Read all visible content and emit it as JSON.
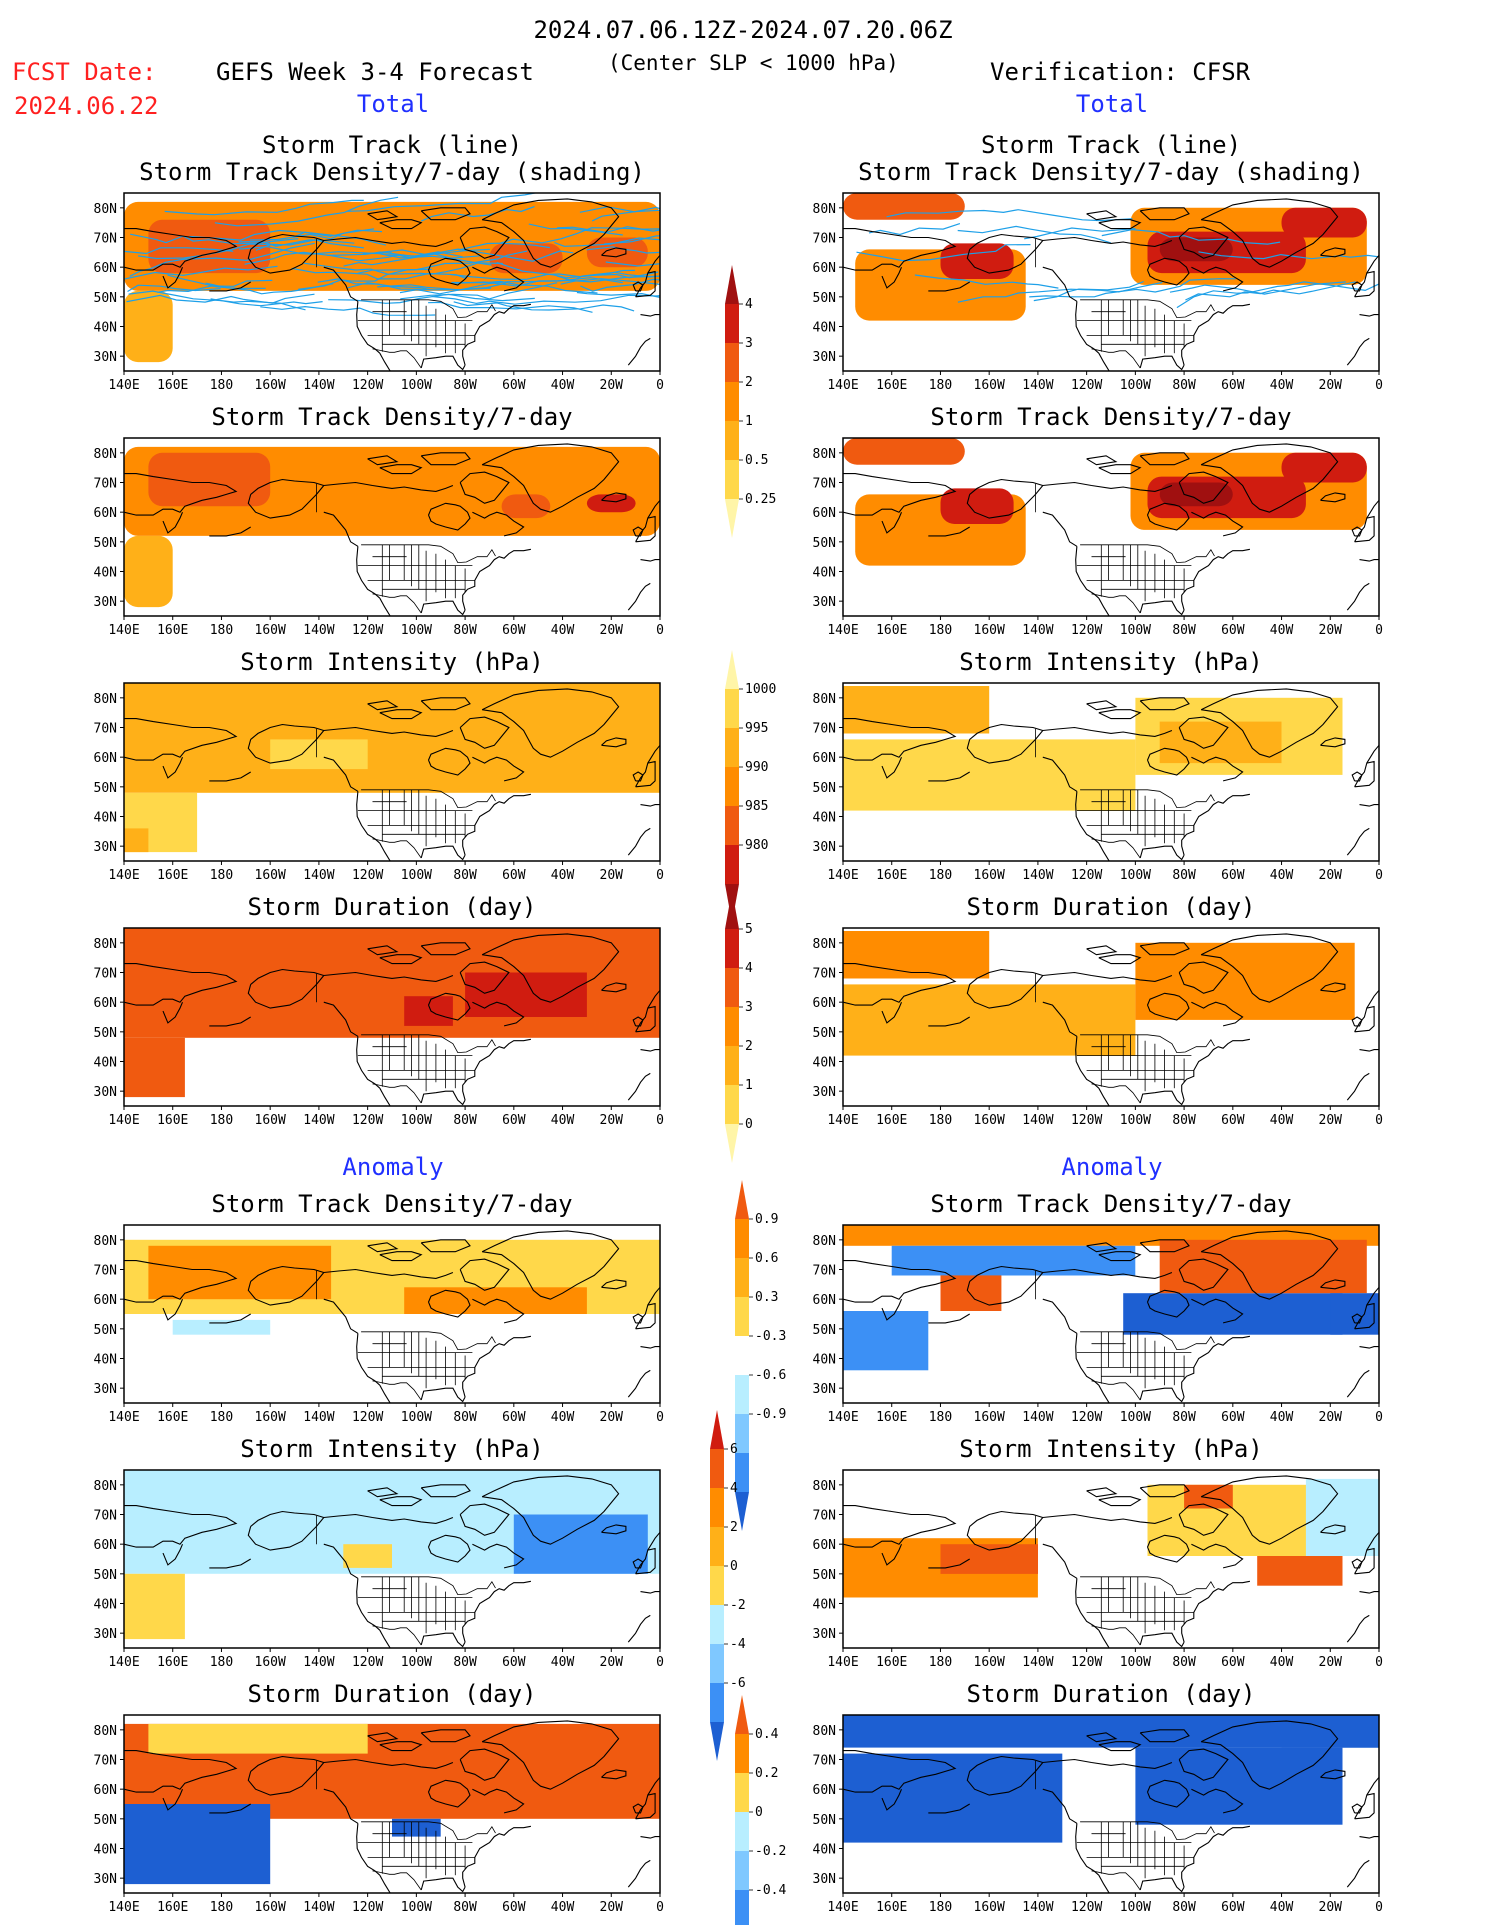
{
  "header": {
    "period": "2024.07.06.12Z-2024.07.20.06Z",
    "fcst_label": "FCST Date:",
    "fcst_date": "2024.06.22",
    "left_title": "GEFS Week 3-4 Forecast",
    "subtitle": "(Center SLP < 1000 hPa)",
    "right_title": "Verification: CFSR"
  },
  "section_labels": {
    "total": "Total",
    "anomaly": "Anomaly"
  },
  "panel_titles": {
    "track_line": "Storm Track (line)",
    "track_density_shading": "Storm Track Density/7-day (shading)",
    "track_density": "Storm Track Density/7-day",
    "intensity": "Storm Intensity (hPa)",
    "duration": "Storm Duration (day)"
  },
  "axes": {
    "lon_ticks": [
      "140E",
      "160E",
      "180",
      "160W",
      "140W",
      "120W",
      "100W",
      "80W",
      "60W",
      "40W",
      "20W",
      "0"
    ],
    "lat_ticks": [
      "80N",
      "70N",
      "60N",
      "50N",
      "40N",
      "30N"
    ]
  },
  "colors": {
    "pale_yellow": "#fff5a8",
    "yellow": "#ffd84a",
    "light_orange": "#ffb018",
    "orange": "#ff8c00",
    "orange_red": "#f05a10",
    "red": "#d01c10",
    "dark_red": "#a01010",
    "pale_blue": "#b8eeff",
    "light_blue": "#7fc8ff",
    "blue": "#3c90f5",
    "dark_blue": "#1d5fd2",
    "track_line": "#1ea0e8"
  },
  "chart_data": [
    {
      "type": "heatmap",
      "panel": "forecast-total-track-lines",
      "title": "Storm Track (line)",
      "subtitle": "Storm Track Density/7-day (shading)",
      "xlim": [
        140,
        360
      ],
      "ylim": [
        25,
        85
      ],
      "colorbar": "density",
      "fields": [
        {
          "lon": [
            140,
            360
          ],
          "lat": [
            52,
            82
          ],
          "level": 3
        },
        {
          "lon": [
            150,
            200
          ],
          "lat": [
            58,
            76
          ],
          "level": 4
        },
        {
          "lon": [
            290,
            320
          ],
          "lat": [
            58,
            68
          ],
          "level": 4
        },
        {
          "lon": [
            330,
            355
          ],
          "lat": [
            60,
            70
          ],
          "level": 4
        },
        {
          "lon": [
            140,
            160
          ],
          "lat": [
            28,
            52
          ],
          "level": 2
        }
      ]
    },
    {
      "type": "heatmap",
      "panel": "verification-total-track-lines",
      "title": "Storm Track (line)",
      "subtitle": "Storm Track Density/7-day (shading)",
      "xlim": [
        140,
        360
      ],
      "ylim": [
        25,
        85
      ],
      "colorbar": "density",
      "fields": [
        {
          "lon": [
            145,
            215
          ],
          "lat": [
            42,
            66
          ],
          "level": 3
        },
        {
          "lon": [
            140,
            190
          ],
          "lat": [
            76,
            85
          ],
          "level": 4
        },
        {
          "lon": [
            180,
            210
          ],
          "lat": [
            56,
            68
          ],
          "level": 5
        },
        {
          "lon": [
            258,
            355
          ],
          "lat": [
            54,
            80
          ],
          "level": 3
        },
        {
          "lon": [
            265,
            330
          ],
          "lat": [
            58,
            72
          ],
          "level": 5
        },
        {
          "lon": [
            270,
            300
          ],
          "lat": [
            62,
            70
          ],
          "level": 6
        },
        {
          "lon": [
            320,
            355
          ],
          "lat": [
            70,
            80
          ],
          "level": 5
        }
      ]
    },
    {
      "type": "heatmap",
      "panel": "forecast-total-density",
      "title": "Storm Track Density/7-day",
      "xlim": [
        140,
        360
      ],
      "ylim": [
        25,
        85
      ],
      "colorbar": "density",
      "fields": [
        {
          "lon": [
            140,
            360
          ],
          "lat": [
            52,
            82
          ],
          "level": 3
        },
        {
          "lon": [
            150,
            200
          ],
          "lat": [
            62,
            80
          ],
          "level": 4
        },
        {
          "lon": [
            295,
            315
          ],
          "lat": [
            58,
            66
          ],
          "level": 4
        },
        {
          "lon": [
            330,
            350
          ],
          "lat": [
            60,
            66
          ],
          "level": 5
        },
        {
          "lon": [
            140,
            160
          ],
          "lat": [
            28,
            52
          ],
          "level": 2
        }
      ]
    },
    {
      "type": "heatmap",
      "panel": "verification-total-density",
      "title": "Storm Track Density/7-day",
      "xlim": [
        140,
        360
      ],
      "ylim": [
        25,
        85
      ],
      "colorbar": "density",
      "fields": [
        {
          "lon": [
            145,
            215
          ],
          "lat": [
            42,
            66
          ],
          "level": 3
        },
        {
          "lon": [
            140,
            190
          ],
          "lat": [
            76,
            85
          ],
          "level": 4
        },
        {
          "lon": [
            180,
            210
          ],
          "lat": [
            56,
            68
          ],
          "level": 5
        },
        {
          "lon": [
            258,
            355
          ],
          "lat": [
            54,
            80
          ],
          "level": 3
        },
        {
          "lon": [
            265,
            330
          ],
          "lat": [
            58,
            72
          ],
          "level": 5
        },
        {
          "lon": [
            270,
            300
          ],
          "lat": [
            62,
            70
          ],
          "level": 6
        },
        {
          "lon": [
            320,
            355
          ],
          "lat": [
            70,
            80
          ],
          "level": 5
        }
      ]
    },
    {
      "type": "heatmap",
      "panel": "forecast-total-intensity",
      "title": "Storm Intensity (hPa)",
      "xlim": [
        140,
        360
      ],
      "ylim": [
        25,
        85
      ],
      "colorbar": "intensity",
      "fields": [
        {
          "lon": [
            140,
            360
          ],
          "lat": [
            48,
            85
          ],
          "level": 2
        },
        {
          "lon": [
            140,
            170
          ],
          "lat": [
            28,
            48
          ],
          "level": 1
        },
        {
          "lon": [
            200,
            240
          ],
          "lat": [
            56,
            66
          ],
          "level": 1
        },
        {
          "lon": [
            140,
            150
          ],
          "lat": [
            28,
            36
          ],
          "level": 2
        }
      ]
    },
    {
      "type": "heatmap",
      "panel": "verification-total-intensity",
      "title": "Storm Intensity (hPa)",
      "xlim": [
        140,
        360
      ],
      "ylim": [
        25,
        85
      ],
      "colorbar": "intensity",
      "fields": [
        {
          "lon": [
            140,
            260
          ],
          "lat": [
            42,
            66
          ],
          "level": 1
        },
        {
          "lon": [
            140,
            200
          ],
          "lat": [
            68,
            84
          ],
          "level": 2
        },
        {
          "lon": [
            260,
            345
          ],
          "lat": [
            54,
            80
          ],
          "level": 1
        },
        {
          "lon": [
            270,
            320
          ],
          "lat": [
            58,
            72
          ],
          "level": 2
        }
      ]
    },
    {
      "type": "heatmap",
      "panel": "forecast-total-duration",
      "title": "Storm Duration (day)",
      "xlim": [
        140,
        360
      ],
      "ylim": [
        25,
        85
      ],
      "colorbar": "duration",
      "fields": [
        {
          "lon": [
            140,
            360
          ],
          "lat": [
            48,
            85
          ],
          "level": 4
        },
        {
          "lon": [
            140,
            165
          ],
          "lat": [
            28,
            48
          ],
          "level": 4
        },
        {
          "lon": [
            280,
            330
          ],
          "lat": [
            55,
            70
          ],
          "level": 5
        },
        {
          "lon": [
            255,
            275
          ],
          "lat": [
            52,
            62
          ],
          "level": 5
        }
      ]
    },
    {
      "type": "heatmap",
      "panel": "verification-total-duration",
      "title": "Storm Duration (day)",
      "xlim": [
        140,
        360
      ],
      "ylim": [
        25,
        85
      ],
      "colorbar": "duration",
      "fields": [
        {
          "lon": [
            140,
            260
          ],
          "lat": [
            42,
            66
          ],
          "level": 2
        },
        {
          "lon": [
            140,
            200
          ],
          "lat": [
            68,
            84
          ],
          "level": 3
        },
        {
          "lon": [
            260,
            350
          ],
          "lat": [
            54,
            80
          ],
          "level": 3
        }
      ]
    },
    {
      "type": "heatmap",
      "panel": "forecast-anomaly-density",
      "title": "Storm Track Density/7-day",
      "xlim": [
        140,
        360
      ],
      "ylim": [
        25,
        85
      ],
      "colorbar": "density-anomaly",
      "fields": [
        {
          "lon": [
            140,
            360
          ],
          "lat": [
            55,
            80
          ],
          "level": 1
        },
        {
          "lon": [
            150,
            225
          ],
          "lat": [
            60,
            78
          ],
          "level": 2
        },
        {
          "lon": [
            255,
            330
          ],
          "lat": [
            55,
            64
          ],
          "level": 2
        },
        {
          "lon": [
            160,
            200
          ],
          "lat": [
            48,
            53
          ],
          "level": -1
        }
      ]
    },
    {
      "type": "heatmap",
      "panel": "verification-anomaly-density",
      "title": "Storm Track Density/7-day",
      "xlim": [
        140,
        360
      ],
      "ylim": [
        25,
        85
      ],
      "colorbar": "density-anomaly",
      "fields": [
        {
          "lon": [
            140,
            360
          ],
          "lat": [
            78,
            85
          ],
          "level": 2
        },
        {
          "lon": [
            160,
            260
          ],
          "lat": [
            68,
            78
          ],
          "level": -2
        },
        {
          "lon": [
            180,
            205
          ],
          "lat": [
            56,
            68
          ],
          "level": 3
        },
        {
          "lon": [
            140,
            175
          ],
          "lat": [
            36,
            56
          ],
          "level": -2
        },
        {
          "lon": [
            255,
            345
          ],
          "lat": [
            48,
            62
          ],
          "level": -3
        },
        {
          "lon": [
            270,
            355
          ],
          "lat": [
            62,
            80
          ],
          "level": 3
        },
        {
          "lon": [
            340,
            360
          ],
          "lat": [
            48,
            62
          ],
          "level": -3
        }
      ]
    },
    {
      "type": "heatmap",
      "panel": "forecast-anomaly-intensity",
      "title": "Storm Intensity (hPa)",
      "xlim": [
        140,
        360
      ],
      "ylim": [
        25,
        85
      ],
      "colorbar": "intensity-anomaly",
      "fields": [
        {
          "lon": [
            140,
            360
          ],
          "lat": [
            50,
            85
          ],
          "level": -1
        },
        {
          "lon": [
            140,
            165
          ],
          "lat": [
            28,
            50
          ],
          "level": 1
        },
        {
          "lon": [
            300,
            355
          ],
          "lat": [
            50,
            70
          ],
          "level": -2
        },
        {
          "lon": [
            230,
            250
          ],
          "lat": [
            52,
            60
          ],
          "level": 1
        }
      ]
    },
    {
      "type": "heatmap",
      "panel": "verification-anomaly-intensity",
      "title": "Storm Intensity (hPa)",
      "xlim": [
        140,
        360
      ],
      "ylim": [
        25,
        85
      ],
      "colorbar": "intensity-anomaly",
      "fields": [
        {
          "lon": [
            140,
            220
          ],
          "lat": [
            42,
            62
          ],
          "level": 2
        },
        {
          "lon": [
            180,
            220
          ],
          "lat": [
            50,
            60
          ],
          "level": 3
        },
        {
          "lon": [
            265,
            345
          ],
          "lat": [
            56,
            80
          ],
          "level": 1
        },
        {
          "lon": [
            280,
            300
          ],
          "lat": [
            72,
            80
          ],
          "level": 3
        },
        {
          "lon": [
            310,
            345
          ],
          "lat": [
            46,
            56
          ],
          "level": 3
        },
        {
          "lon": [
            330,
            360
          ],
          "lat": [
            56,
            82
          ],
          "level": -1
        }
      ]
    },
    {
      "type": "heatmap",
      "panel": "forecast-anomaly-duration",
      "title": "Storm Duration (day)",
      "xlim": [
        140,
        360
      ],
      "ylim": [
        25,
        85
      ],
      "colorbar": "duration-anomaly",
      "fields": [
        {
          "lon": [
            140,
            360
          ],
          "lat": [
            50,
            82
          ],
          "level": 3
        },
        {
          "lon": [
            150,
            240
          ],
          "lat": [
            72,
            82
          ],
          "level": 1
        },
        {
          "lon": [
            140,
            200
          ],
          "lat": [
            28,
            55
          ],
          "level": -3
        },
        {
          "lon": [
            250,
            270
          ],
          "lat": [
            44,
            50
          ],
          "level": -3
        }
      ]
    },
    {
      "type": "heatmap",
      "panel": "verification-anomaly-duration",
      "title": "Storm Duration (day)",
      "xlim": [
        140,
        360
      ],
      "ylim": [
        25,
        85
      ],
      "colorbar": "duration-anomaly",
      "fields": [
        {
          "lon": [
            140,
            360
          ],
          "lat": [
            74,
            85
          ],
          "level": -3
        },
        {
          "lon": [
            140,
            230
          ],
          "lat": [
            42,
            72
          ],
          "level": -3
        },
        {
          "lon": [
            260,
            345
          ],
          "lat": [
            48,
            74
          ],
          "level": -3
        },
        {
          "lon": [
            320,
            360
          ],
          "lat": [
            74,
            84
          ],
          "level": -3
        }
      ]
    }
  ],
  "colorbars": {
    "density": {
      "labels": [
        "4",
        "3",
        "2",
        "1",
        "0.5",
        "0.25"
      ],
      "colors": [
        "#a01010",
        "#d01c10",
        "#f05a10",
        "#ff8c00",
        "#ffb018",
        "#ffd84a",
        "#fff5a8"
      ]
    },
    "intensity": {
      "labels": [
        "1000",
        "995",
        "990",
        "985",
        "980"
      ],
      "colors": [
        "#fff5a8",
        "#ffd84a",
        "#ffb018",
        "#ff8c00",
        "#f05a10",
        "#d01c10",
        "#a01010"
      ]
    },
    "duration": {
      "labels": [
        "5",
        "4",
        "3",
        "2",
        "1",
        "0"
      ],
      "colors": [
        "#a01010",
        "#d01c10",
        "#f05a10",
        "#ff8c00",
        "#ffb018",
        "#ffd84a",
        "#fff5a8"
      ]
    },
    "density_anomaly": {
      "labels": [
        "0.9",
        "0.6",
        "0.3",
        "-0.3",
        "-0.6",
        "-0.9"
      ],
      "colors": [
        "#f05a10",
        "#ff8c00",
        "#ffb018",
        "#ffd84a",
        "#ffffff",
        "#b8eeff",
        "#7fc8ff",
        "#3c90f5",
        "#1d5fd2"
      ]
    },
    "intensity_anomaly": {
      "labels": [
        "6",
        "4",
        "2",
        "0",
        "-2",
        "-4",
        "-6"
      ],
      "colors": [
        "#d01c10",
        "#f05a10",
        "#ff8c00",
        "#ffb018",
        "#ffd84a",
        "#b8eeff",
        "#7fc8ff",
        "#3c90f5",
        "#1d5fd2"
      ]
    },
    "duration_anomaly": {
      "labels": [
        "0.4",
        "0.2",
        "0",
        "-0.2",
        "-0.4"
      ],
      "colors": [
        "#f05a10",
        "#ff8c00",
        "#ffd84a",
        "#b8eeff",
        "#7fc8ff",
        "#3c90f5",
        "#1d5fd2"
      ]
    }
  }
}
